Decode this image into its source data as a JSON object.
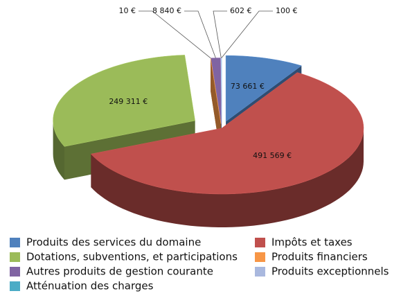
{
  "chart_data": {
    "type": "pie",
    "categories": [
      "Produits des services du domaine",
      "Impôts et taxes",
      "Dotations, subventions, et participations",
      "Produits financiers",
      "Autres produits de gestion courante",
      "Produits exceptionnels",
      "Atténuation des charges"
    ],
    "values": [
      73661,
      491569,
      249311,
      10,
      8840,
      602,
      100
    ],
    "value_labels": [
      "73 661 €",
      "491 569 €",
      "249 311 €",
      "10 €",
      "8 840 €",
      "602 €",
      "100 €"
    ],
    "colors": [
      "#4f81bd",
      "#c0504d",
      "#9bbb59",
      "#f79646",
      "#8064a2",
      "#a9b8de",
      "#4bacc6"
    ]
  }
}
